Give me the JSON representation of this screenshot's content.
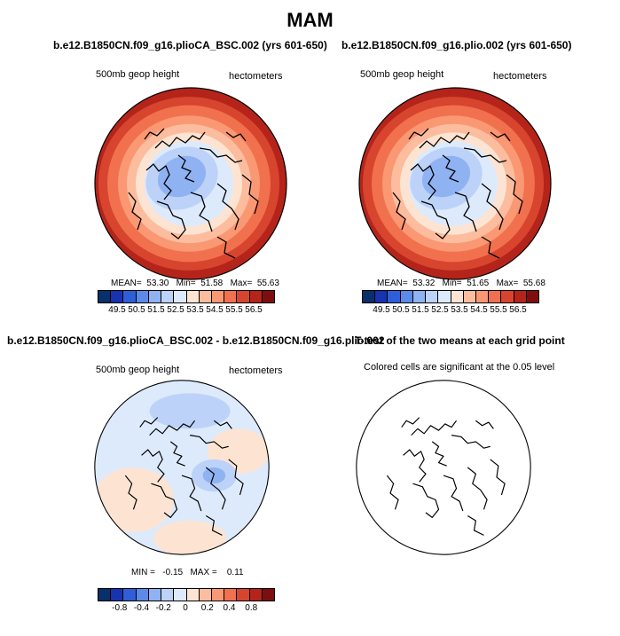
{
  "title": "MAM",
  "colors": {
    "scale": [
      "#08306b",
      "#1733b0",
      "#2f5fd8",
      "#5b8ae8",
      "#8fb2f2",
      "#bcd2f8",
      "#ddeafc",
      "#fde4d2",
      "#fcbd9e",
      "#fa9874",
      "#f1714e",
      "#d8452e",
      "#b5241a",
      "#800d0d"
    ]
  },
  "chart_data": [
    {
      "type": "heatmap",
      "projection": "polar-stereographic",
      "title": "b.e12.B1850CN.f09_g16.plioCA_BSC.002 (yrs 601-650)",
      "left_label": "500mb geop height",
      "right_label": "hectometers",
      "stats": {
        "mean_label": "MEAN=",
        "mean": "53.30",
        "min_label": "Min=",
        "min": "51.58",
        "max_label": "Max=",
        "max": "55.63"
      },
      "colorbar_ticks": [
        "49.5",
        "50.5",
        "51.5",
        "52.5",
        "53.5",
        "54.5",
        "55.5",
        "56.5"
      ]
    },
    {
      "type": "heatmap",
      "projection": "polar-stereographic",
      "title": "b.e12.B1850CN.f09_g16.plio.002 (yrs 601-650)",
      "left_label": "500mb geop height",
      "right_label": "hectometers",
      "stats": {
        "mean_label": "MEAN=",
        "mean": "53.32",
        "min_label": "Min=",
        "min": "51.65",
        "max_label": "Max=",
        "max": "55.68"
      },
      "colorbar_ticks": [
        "49.5",
        "50.5",
        "51.5",
        "52.5",
        "53.5",
        "54.5",
        "55.5",
        "56.5"
      ]
    },
    {
      "type": "heatmap",
      "projection": "polar-stereographic",
      "title": "b.e12.B1850CN.f09_g16.plioCA_BSC.002 - b.e12.B1850CN.f09_g16.plio.002",
      "left_label": "500mb geop height",
      "right_label": "hectometers",
      "stats": {
        "min_label": "MIN =",
        "min": "-0.15",
        "max_label": "MAX =",
        "max": "0.11"
      },
      "colorbar_ticks": [
        "-0.8",
        "-0.4",
        "-0.2",
        "0",
        "0.2",
        "0.4",
        "0.8"
      ]
    },
    {
      "type": "heatmap",
      "projection": "polar-stereographic",
      "title": "T-test of the two means at each grid point",
      "left_label": "Colored cells are significant at the 0.05 level"
    }
  ]
}
